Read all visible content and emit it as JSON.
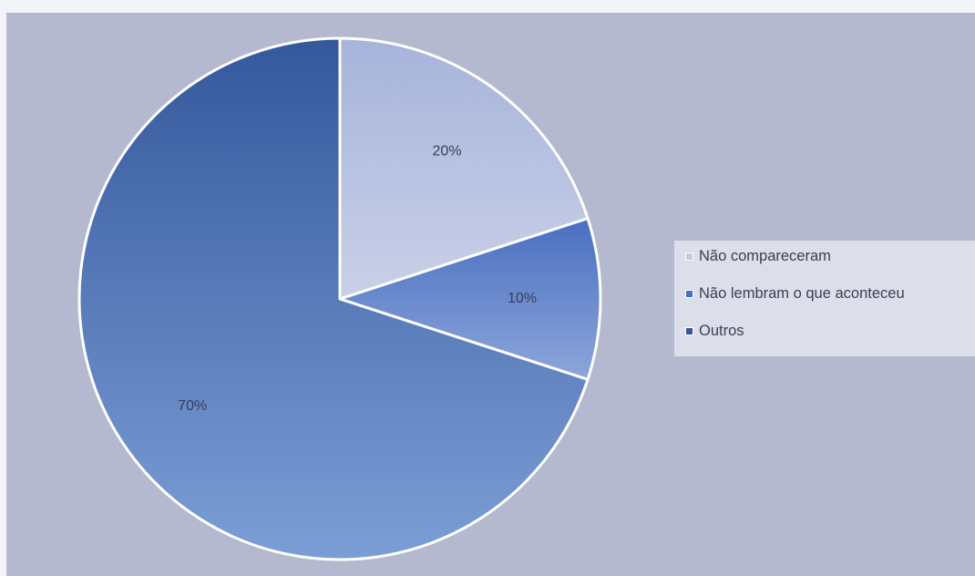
{
  "chart_data": {
    "type": "pie",
    "slices": [
      {
        "label": "Não compareceram",
        "value": 20,
        "value_label": "20%",
        "color_top": "#a7b4da",
        "color_bottom": "#c9d0e8",
        "swatch": "#c2cbe6"
      },
      {
        "label": "Não lembram o que aconteceu",
        "value": 10,
        "value_label": "10%",
        "color_top": "#4a6fc1",
        "color_bottom": "#8da6da",
        "swatch": "#4a6fc1"
      },
      {
        "label": "Outros",
        "value": 70,
        "value_label": "70%",
        "color_top": "#34589c",
        "color_bottom": "#7c9ed6",
        "swatch": "#34589c"
      }
    ],
    "legend_position": "right",
    "start_angle_deg": 0,
    "direction": "clockwise"
  }
}
